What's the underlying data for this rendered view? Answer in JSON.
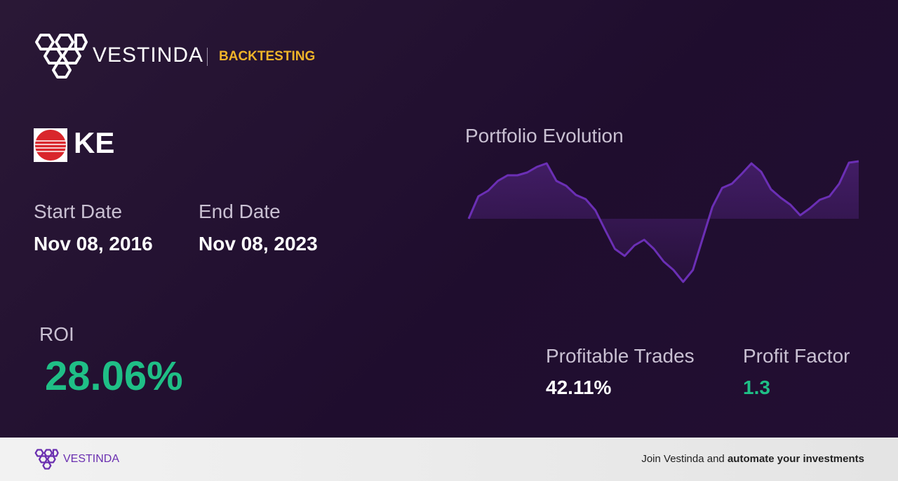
{
  "header": {
    "brand": "VESTINDA",
    "section": "BACKTESTING"
  },
  "ticker": "KE",
  "dates": {
    "start_label": "Start Date",
    "start": "Nov 08, 2016",
    "end_label": "End Date",
    "end": "Nov 08, 2023"
  },
  "metrics": {
    "roi_label": "ROI",
    "roi": "28.06%",
    "profitable_trades_label": "Profitable Trades",
    "profitable_trades": "42.11%",
    "profit_factor_label": "Profit Factor",
    "profit_factor": "1.3"
  },
  "chart_data": {
    "type": "line",
    "title": "Portfolio Evolution",
    "color": "#6b2fb5",
    "values": [
      0,
      32,
      40,
      54,
      62,
      62,
      66,
      74,
      79,
      54,
      47,
      34,
      28,
      12,
      -16,
      -43,
      -53,
      -38,
      -30,
      -43,
      -61,
      -73,
      -90,
      -73,
      -28,
      17,
      44,
      50,
      64,
      79,
      67,
      42,
      30,
      20,
      5,
      15,
      27,
      32,
      50,
      80,
      82
    ]
  },
  "footer": {
    "brand": "VESTINDA",
    "cta_prefix": "Join Vestinda and ",
    "cta_bold": "automate your investments"
  }
}
